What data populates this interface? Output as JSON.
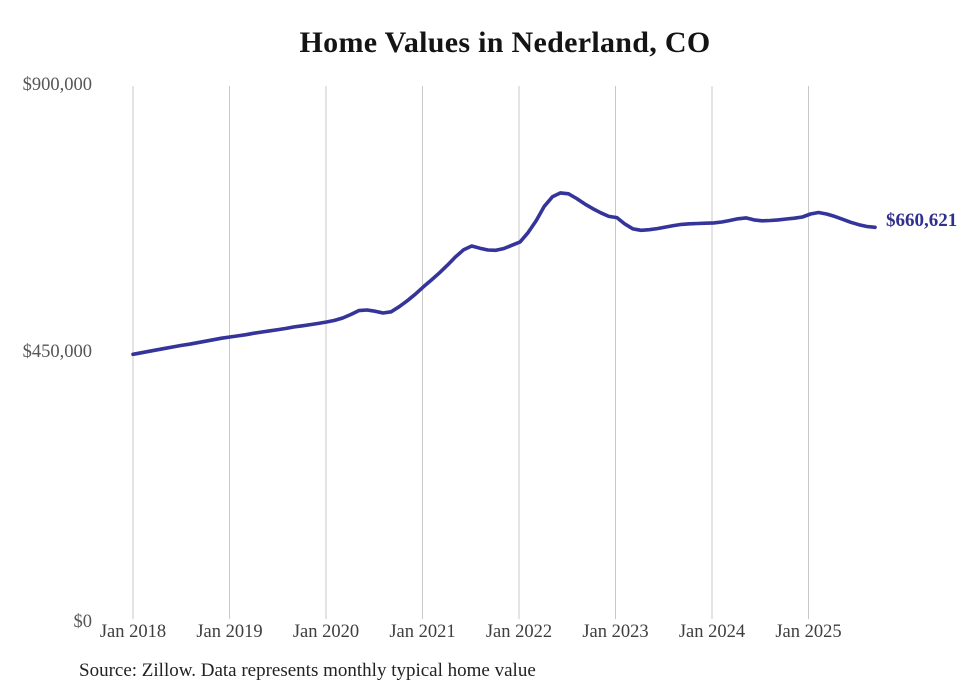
{
  "colors": {
    "line": "#34349B",
    "final_label": "#30308F",
    "gridline": "#C9C9C9",
    "title": "#141414",
    "y_tick": "#565656",
    "x_tick": "#3E3E3E",
    "source": "#222222",
    "background": "#FFFFFF"
  },
  "chart_data": {
    "type": "line",
    "title": "Home Values in Nederland, CO",
    "series_name": "Monthly typical home value",
    "source_note": "Source: Zillow. Data represents monthly typical home value",
    "final_value": 660621,
    "final_value_label": "$660,621",
    "ylim": [
      0,
      900000
    ],
    "grid": "vertical",
    "legend": "none",
    "y_tick_labels": [
      "$900,000",
      "$450,000",
      "$0"
    ],
    "y_tick_values": [
      900000,
      450000,
      0
    ],
    "x_tick_labels": [
      "Jan 2018",
      "Jan 2019",
      "Jan 2020",
      "Jan 2021",
      "Jan 2022",
      "Jan 2023",
      "Jan 2024",
      "Jan 2025"
    ],
    "x": [
      "2018-01",
      "2018-02",
      "2018-03",
      "2018-04",
      "2018-05",
      "2018-06",
      "2018-07",
      "2018-08",
      "2018-09",
      "2018-10",
      "2018-11",
      "2018-12",
      "2019-01",
      "2019-02",
      "2019-03",
      "2019-04",
      "2019-05",
      "2019-06",
      "2019-07",
      "2019-08",
      "2019-09",
      "2019-10",
      "2019-11",
      "2019-12",
      "2020-01",
      "2020-02",
      "2020-03",
      "2020-04",
      "2020-05",
      "2020-06",
      "2020-07",
      "2020-08",
      "2020-09",
      "2020-10",
      "2020-11",
      "2020-12",
      "2021-01",
      "2021-02",
      "2021-03",
      "2021-04",
      "2021-05",
      "2021-06",
      "2021-07",
      "2021-08",
      "2021-09",
      "2021-10",
      "2021-11",
      "2021-12",
      "2022-01",
      "2022-02",
      "2022-03",
      "2022-04",
      "2022-05",
      "2022-06",
      "2022-07",
      "2022-08",
      "2022-09",
      "2022-10",
      "2022-11",
      "2022-12",
      "2023-01",
      "2023-02",
      "2023-03",
      "2023-04",
      "2023-05",
      "2023-06",
      "2023-07",
      "2023-08",
      "2023-09",
      "2023-10",
      "2023-11",
      "2023-12",
      "2024-01",
      "2024-02",
      "2024-03",
      "2024-04",
      "2024-05",
      "2024-06",
      "2024-07",
      "2024-08",
      "2024-09",
      "2024-10",
      "2024-11",
      "2024-12",
      "2025-01",
      "2025-02",
      "2025-03",
      "2025-04",
      "2025-05",
      "2025-06",
      "2025-07",
      "2025-08",
      "2025-09"
    ],
    "values": [
      447000,
      449500,
      452000,
      454500,
      457000,
      459500,
      462000,
      464000,
      466500,
      469000,
      471500,
      474000,
      476000,
      478000,
      480000,
      482500,
      484500,
      486500,
      488500,
      490500,
      493000,
      495000,
      497000,
      499000,
      501300,
      504000,
      508000,
      514000,
      520500,
      521500,
      519500,
      516500,
      518500,
      527000,
      537000,
      548000,
      560300,
      572000,
      584000,
      597000,
      611000,
      623000,
      629200,
      625500,
      622500,
      622000,
      625000,
      630500,
      636000,
      652000,
      672000,
      696000,
      712000,
      718500,
      717000,
      709000,
      700000,
      692000,
      685000,
      679000,
      677000,
      666000,
      658000,
      655500,
      656500,
      658500,
      661000,
      663500,
      665500,
      666500,
      667000,
      667500,
      668000,
      669500,
      672000,
      675000,
      676500,
      673000,
      671500,
      672000,
      673000,
      674500,
      676000,
      678000,
      683000,
      685500,
      683000,
      679000,
      674000,
      669000,
      665000,
      662000,
      660621
    ]
  }
}
